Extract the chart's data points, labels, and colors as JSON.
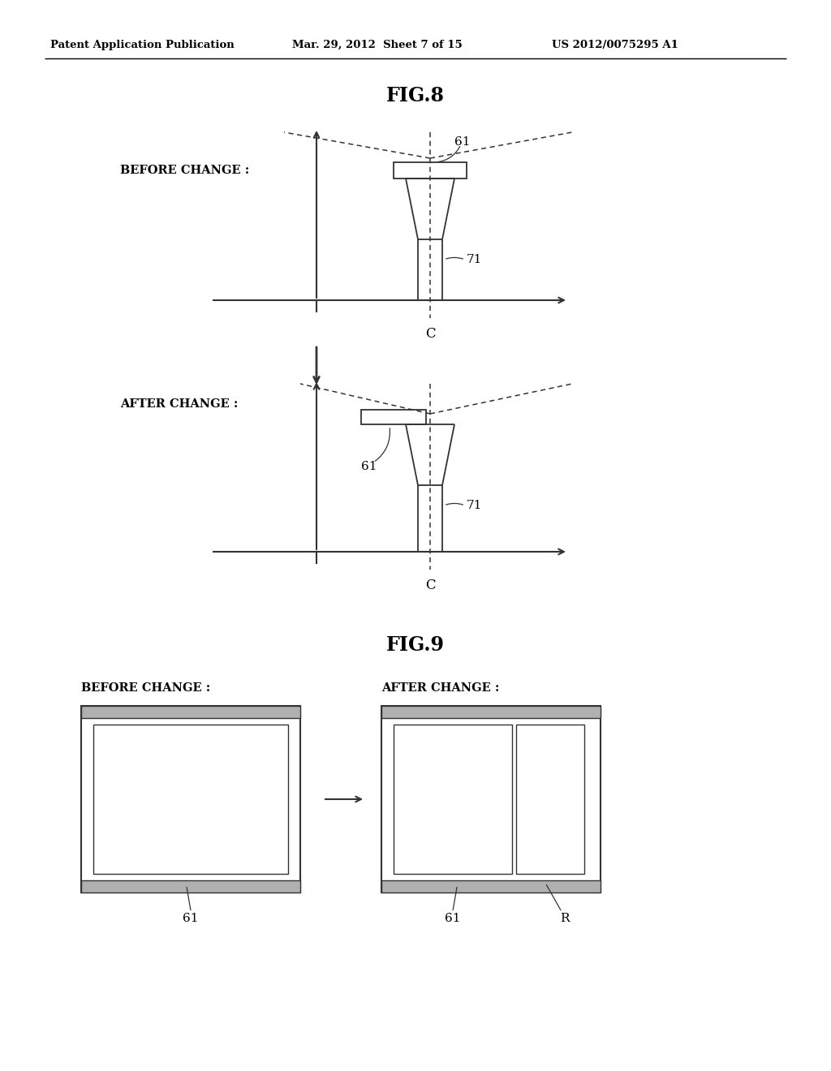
{
  "bg_color": "#ffffff",
  "header_left": "Patent Application Publication",
  "header_mid": "Mar. 29, 2012  Sheet 7 of 15",
  "header_right": "US 2012/0075295 A1",
  "fig8_title": "FIG.8",
  "fig9_title": "FIG.9",
  "before_change_label": "BEFORE CHANGE :",
  "after_change_label": "AFTER CHANGE :",
  "label_61": "61",
  "label_71": "71",
  "label_C": "C",
  "label_R": "R"
}
